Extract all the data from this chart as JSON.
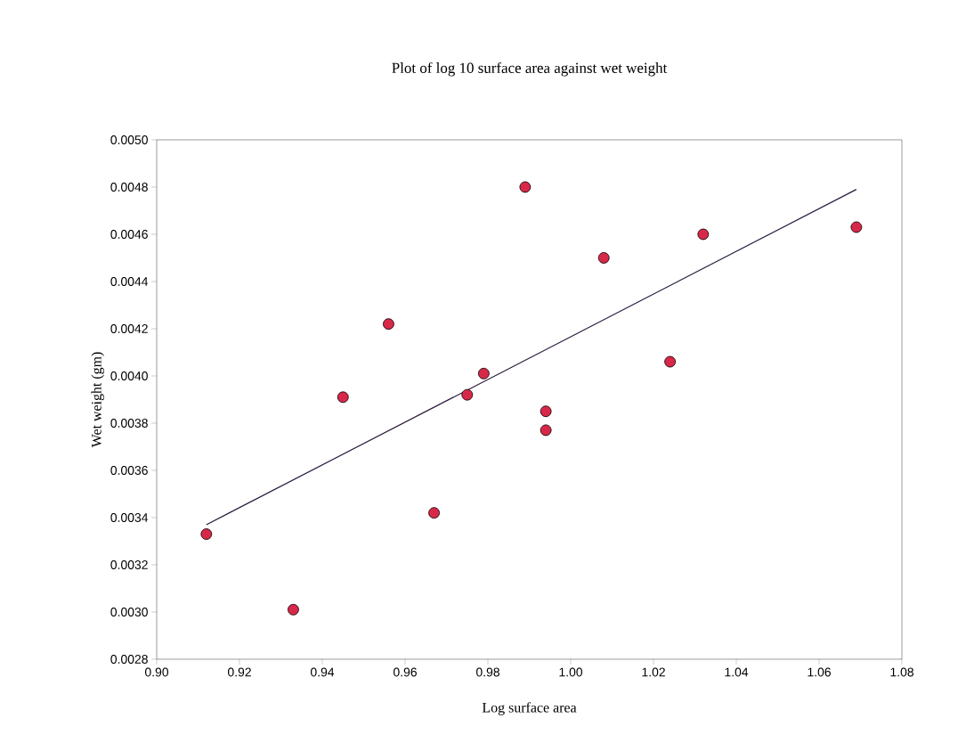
{
  "chart_data": {
    "type": "scatter",
    "title": "Plot of log 10 surface area against wet weight",
    "xlabel": "Log surface area",
    "ylabel": "Wet weight (gm)",
    "marker": "circle",
    "xlim": [
      0.9,
      1.08
    ],
    "ylim": [
      0.0028,
      0.005
    ],
    "xticks": [
      {
        "value": 0.9,
        "label": "0.90"
      },
      {
        "value": 0.92,
        "label": "0.92"
      },
      {
        "value": 0.94,
        "label": "0.94"
      },
      {
        "value": 0.96,
        "label": "0.96"
      },
      {
        "value": 0.98,
        "label": "0.98"
      },
      {
        "value": 1.0,
        "label": "1.00"
      },
      {
        "value": 1.02,
        "label": "1.02"
      },
      {
        "value": 1.04,
        "label": "1.04"
      },
      {
        "value": 1.06,
        "label": "1.06"
      },
      {
        "value": 1.08,
        "label": "1.08"
      }
    ],
    "yticks": [
      {
        "value": 0.0028,
        "label": "0.0028"
      },
      {
        "value": 0.003,
        "label": "0.0030"
      },
      {
        "value": 0.0032,
        "label": "0.0032"
      },
      {
        "value": 0.0034,
        "label": "0.0034"
      },
      {
        "value": 0.0036,
        "label": "0.0036"
      },
      {
        "value": 0.0038,
        "label": "0.0038"
      },
      {
        "value": 0.004,
        "label": "0.0040"
      },
      {
        "value": 0.0042,
        "label": "0.0042"
      },
      {
        "value": 0.0044,
        "label": "0.0044"
      },
      {
        "value": 0.0046,
        "label": "0.0046"
      },
      {
        "value": 0.0048,
        "label": "0.0048"
      },
      {
        "value": 0.005,
        "label": "0.0050"
      }
    ],
    "series": [
      {
        "color": "#d8284a",
        "x": [
          0.912,
          0.933,
          0.945,
          0.956,
          0.967,
          0.975,
          0.979,
          0.989,
          0.994,
          0.994,
          1.008,
          1.024,
          1.032,
          1.069
        ],
        "values": [
          0.00333,
          0.00301,
          0.00391,
          0.00422,
          0.00342,
          0.00392,
          0.00401,
          0.0048,
          0.00377,
          0.00385,
          0.0045,
          0.00406,
          0.0046,
          0.00463
        ]
      },
      {
        "type": "line",
        "color": "#2a1a3a",
        "marker": "none",
        "line_style": "solid",
        "x": [
          0.912,
          1.069
        ],
        "values": [
          0.00337,
          0.00479
        ]
      }
    ]
  }
}
